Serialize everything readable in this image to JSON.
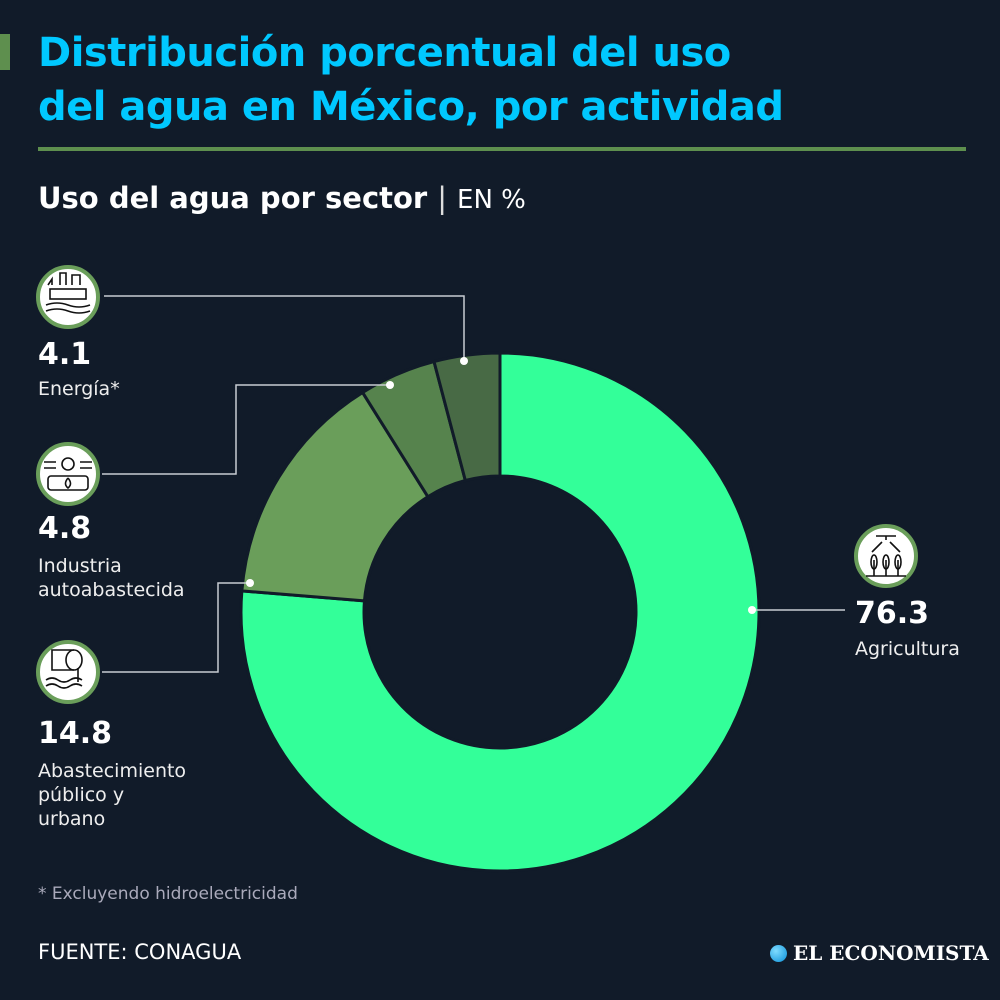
{
  "header": {
    "title_line1": "Distribución porcentual del uso",
    "title_line2": "del agua en México, por actividad",
    "subtitle": "Uso del agua por sector",
    "separator": "|",
    "unit": "EN %"
  },
  "chart_data": {
    "type": "pie",
    "variant": "donut",
    "title": "Uso del agua por sector",
    "unit": "EN %",
    "categories": [
      "Agricultura",
      "Abastecimiento público y urbano",
      "Industria autoabastecida",
      "Energía*"
    ],
    "values": [
      76.3,
      14.8,
      4.8,
      4.1
    ],
    "value_labels": [
      "76.3",
      "14.8",
      "4.8",
      "4.1"
    ],
    "label_lines": [
      [
        "Agricultura"
      ],
      [
        "Abastecimiento",
        "público y",
        "urbano"
      ],
      [
        "Industria",
        "autoabastecida"
      ],
      [
        "Energía*"
      ]
    ],
    "colors": [
      "#33ff99",
      "#6a9e5a",
      "#56834d",
      "#486a45"
    ],
    "icons": [
      "irrigation-crops-icon",
      "water-pipe-icon",
      "industry-gears-icon",
      "power-plant-icon"
    ],
    "start": "top",
    "direction": "clockwise"
  },
  "footer": {
    "note": "* Excluyendo hidroelectricidad",
    "source": "FUENTE:  CONAGUA",
    "logo_text": "EL ECONOMISTA"
  },
  "colors": {
    "background": "#111b29",
    "title": "#00c8ff",
    "accent": "#5e8f4e"
  }
}
